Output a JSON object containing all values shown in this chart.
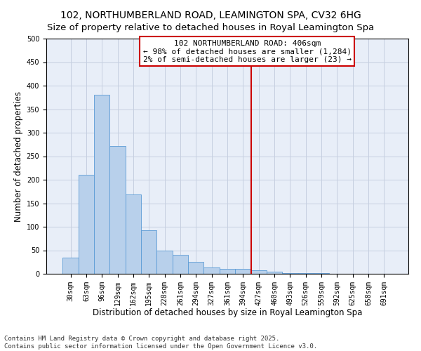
{
  "title": "102, NORTHUMBERLAND ROAD, LEAMINGTON SPA, CV32 6HG",
  "subtitle": "Size of property relative to detached houses in Royal Leamington Spa",
  "xlabel": "Distribution of detached houses by size in Royal Leamington Spa",
  "ylabel": "Number of detached properties",
  "bar_labels": [
    "30sqm",
    "63sqm",
    "96sqm",
    "129sqm",
    "162sqm",
    "195sqm",
    "228sqm",
    "261sqm",
    "294sqm",
    "327sqm",
    "361sqm",
    "394sqm",
    "427sqm",
    "460sqm",
    "493sqm",
    "526sqm",
    "559sqm",
    "592sqm",
    "625sqm",
    "658sqm",
    "691sqm"
  ],
  "bar_values": [
    35,
    210,
    380,
    272,
    168,
    93,
    50,
    40,
    25,
    14,
    10,
    10,
    8,
    4,
    2,
    1,
    1,
    0,
    0,
    0,
    0
  ],
  "bar_color": "#b8d0eb",
  "bar_edge_color": "#5b9bd5",
  "vline_color": "#cc0000",
  "annotation_box_text": "102 NORTHUMBERLAND ROAD: 406sqm\n← 98% of detached houses are smaller (1,284)\n2% of semi-detached houses are larger (23) →",
  "ylim": [
    0,
    500
  ],
  "yticks": [
    0,
    50,
    100,
    150,
    200,
    250,
    300,
    350,
    400,
    450,
    500
  ],
  "footer_line1": "Contains HM Land Registry data © Crown copyright and database right 2025.",
  "footer_line2": "Contains public sector information licensed under the Open Government Licence v3.0.",
  "bg_color": "#e8eef8",
  "grid_color": "#c5cfe0",
  "title_fontsize": 10,
  "axis_label_fontsize": 8.5,
  "tick_fontsize": 7,
  "annotation_fontsize": 8,
  "footer_fontsize": 6.5
}
